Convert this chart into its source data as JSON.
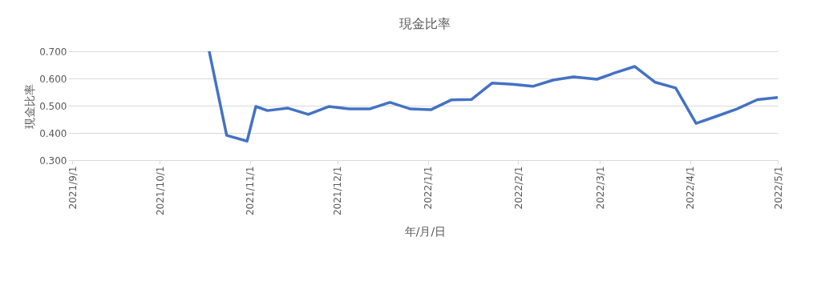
{
  "chart_data": {
    "type": "line",
    "title": "現金比率",
    "xlabel": "年/月/日",
    "ylabel": "現金比率",
    "x": [
      "2021-10-18",
      "2021-10-24",
      "2021-10-31",
      "2021-11-03",
      "2021-11-07",
      "2021-11-14",
      "2021-11-21",
      "2021-11-28",
      "2021-12-05",
      "2021-12-12",
      "2021-12-19",
      "2021-12-26",
      "2022-01-02",
      "2022-01-09",
      "2022-01-16",
      "2022-01-23",
      "2022-01-30",
      "2022-02-06",
      "2022-02-13",
      "2022-02-20",
      "2022-02-28",
      "2022-03-06",
      "2022-03-13",
      "2022-03-20",
      "2022-03-27",
      "2022-04-03",
      "2022-04-10",
      "2022-04-17",
      "2022-04-24",
      "2022-05-01"
    ],
    "series": [
      {
        "color": "#4472c4",
        "values": [
          0.7,
          0.391,
          0.37,
          0.497,
          0.482,
          0.491,
          0.468,
          0.497,
          0.488,
          0.488,
          0.512,
          0.488,
          0.485,
          0.521,
          0.523,
          0.583,
          0.579,
          0.571,
          0.594,
          0.606,
          0.597,
          0.62,
          0.644,
          0.586,
          0.565,
          0.435,
          0.461,
          0.488,
          0.522,
          0.53
        ]
      }
    ],
    "xlim": [
      "2021-09-01",
      "2022-05-01"
    ],
    "xticks": [
      {
        "value": "2021-09-01",
        "label": "2021/9/1"
      },
      {
        "value": "2021-10-01",
        "label": "2021/10/1"
      },
      {
        "value": "2021-11-01",
        "label": "2021/11/1"
      },
      {
        "value": "2021-12-01",
        "label": "2021/12/1"
      },
      {
        "value": "2022-01-01",
        "label": "2022/1/1"
      },
      {
        "value": "2022-02-01",
        "label": "2022/2/1"
      },
      {
        "value": "2022-03-01",
        "label": "2022/3/1"
      },
      {
        "value": "2022-04-01",
        "label": "2022/4/1"
      },
      {
        "value": "2022-05-01",
        "label": "2022/5/1"
      }
    ],
    "ylim": [
      0.3,
      0.7
    ],
    "yticks": [
      {
        "value": 0.3,
        "label": "0.300"
      },
      {
        "value": 0.4,
        "label": "0.400"
      },
      {
        "value": 0.5,
        "label": "0.500"
      },
      {
        "value": 0.6,
        "label": "0.600"
      },
      {
        "value": 0.7,
        "label": "0.700"
      }
    ],
    "grid": "y",
    "legend": false,
    "marker": "none",
    "line_style": "solid"
  }
}
